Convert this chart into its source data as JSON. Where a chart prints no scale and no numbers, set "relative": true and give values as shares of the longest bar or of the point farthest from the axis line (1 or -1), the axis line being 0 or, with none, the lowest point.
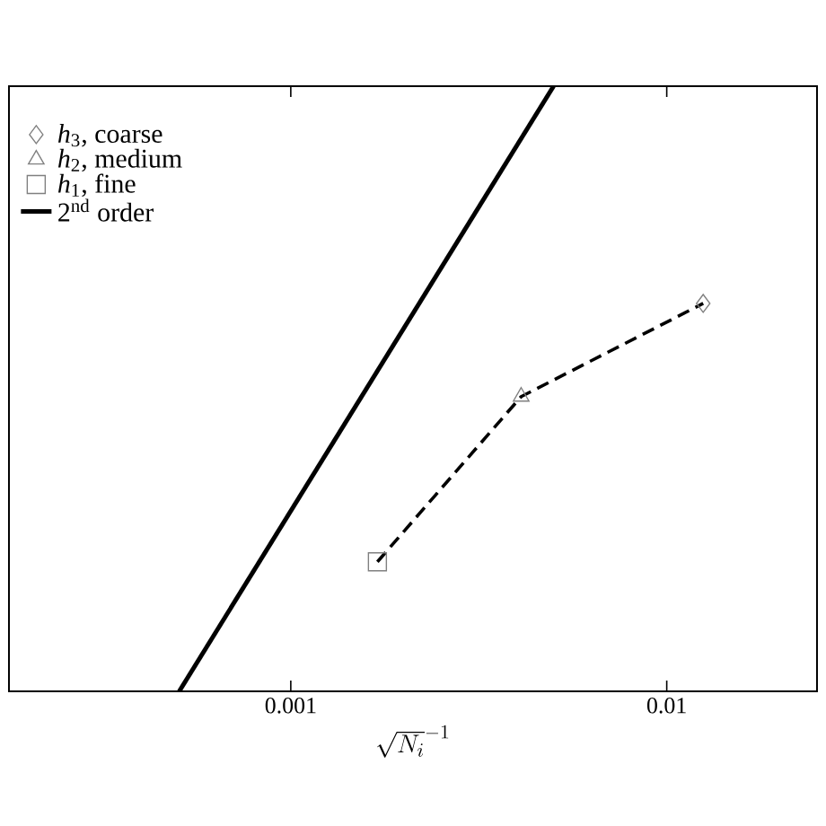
{
  "chart_data": {
    "type": "line",
    "relative": true,
    "log": "x",
    "xlabel": "\\sqrt{N_i}^{-1}",
    "xlim": [
      0.000178,
      0.0251
    ],
    "xticks": [
      0.001,
      0.01
    ],
    "tick_labels": "x",
    "legend": "top left",
    "series": [
      {
        "name": "*h*$_{3}$, coarse",
        "type": "scatter",
        "marker": "diamond",
        "color": "#808080",
        "x": [
          0.0125
        ],
        "values": [
          0.641
        ]
      },
      {
        "name": "*h*$_{2}$, medium",
        "type": "scatter",
        "marker": "triangle",
        "color": "#808080",
        "x": [
          0.0041
        ],
        "values": [
          0.487
        ]
      },
      {
        "name": "*h*$_{1}$, fine",
        "type": "scatter",
        "marker": "square",
        "color": "#808080",
        "x": [
          0.0017
        ],
        "values": [
          0.214
        ]
      },
      {
        "line_style": "dashed",
        "marker": "none",
        "color": "#000000",
        "x": [
          0.0017,
          0.0041,
          0.0125
        ],
        "values": [
          0.214,
          0.487,
          0.641
        ]
      },
      {
        "name": "2$^{nd}$ order",
        "line_style": "solid",
        "marker": "none",
        "color": "#000000",
        "x": [
          0.000505,
          0.005
        ],
        "values": [
          0,
          1
        ]
      }
    ]
  }
}
